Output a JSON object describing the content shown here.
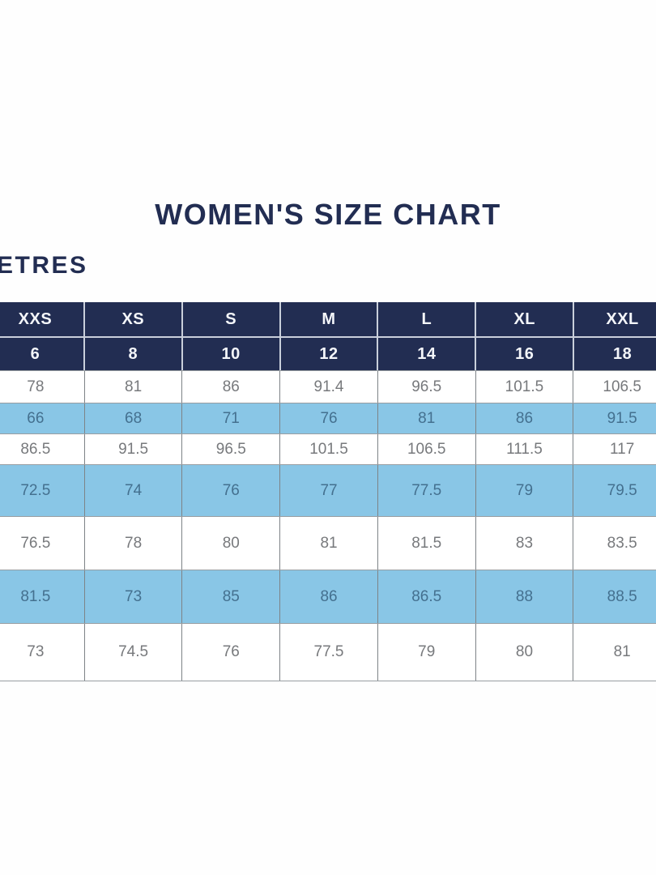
{
  "title": "WOMEN'S SIZE CHART",
  "unit_label": "ETRES",
  "colors": {
    "navy": "#222d52",
    "light_blue": "#89c6e6",
    "header_text": "#f4f6fa",
    "white_row_text": "#77797c",
    "blue_row_text": "#44708f"
  },
  "chart_data": {
    "type": "table",
    "title": "WOMEN'S SIZE CHART",
    "unit_label_visible": "ETRES",
    "columns_size_labels": [
      "XXS",
      "XS",
      "S",
      "M",
      "L",
      "XL",
      "XXL"
    ],
    "columns_numeric_labels": [
      "6",
      "8",
      "10",
      "12",
      "14",
      "16",
      "18"
    ],
    "rows": [
      [
        "78",
        "81",
        "86",
        "91.4",
        "96.5",
        "101.5",
        "106.5"
      ],
      [
        "66",
        "68",
        "71",
        "76",
        "81",
        "86",
        "91.5"
      ],
      [
        "86.5",
        "91.5",
        "96.5",
        "101.5",
        "106.5",
        "111.5",
        "117"
      ],
      [
        "72.5",
        "74",
        "76",
        "77",
        "77.5",
        "79",
        "79.5"
      ],
      [
        "76.5",
        "78",
        "80",
        "81",
        "81.5",
        "83",
        "83.5"
      ],
      [
        "81.5",
        "73",
        "85",
        "86",
        "86.5",
        "88",
        "88.5"
      ],
      [
        "73",
        "74.5",
        "76",
        "77.5",
        "79",
        "80",
        "81"
      ]
    ],
    "row_shading": [
      "white",
      "blue",
      "white",
      "blue",
      "white",
      "blue",
      "white"
    ]
  }
}
